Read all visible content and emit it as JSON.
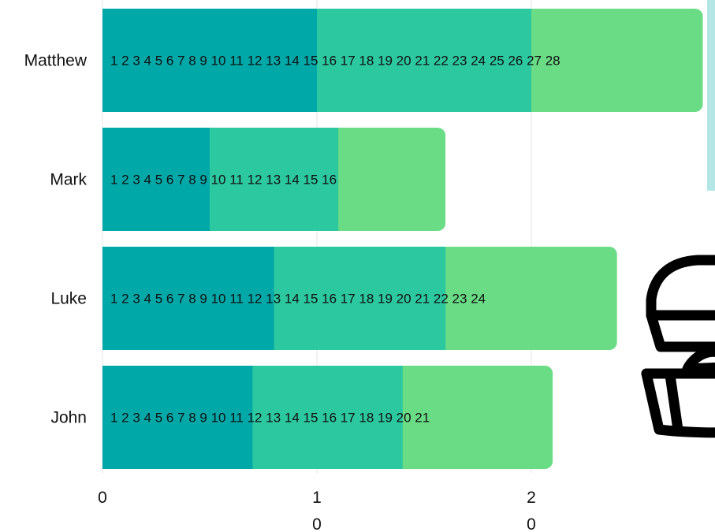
{
  "chart_data": {
    "type": "bar",
    "orientation": "horizontal",
    "stacked": true,
    "categories": [
      "Matthew",
      "Mark",
      "Luke",
      "John"
    ],
    "series": [
      {
        "color": "#00a8a8",
        "values": [
          10,
          5,
          8,
          7
        ]
      },
      {
        "color": "#2cc8a0",
        "values": [
          10,
          6,
          8,
          7
        ]
      },
      {
        "color": "#6adc86",
        "values": [
          8,
          5,
          8,
          7
        ]
      }
    ],
    "chapter_labels": [
      "1 2 3 4 5 6 7 8 9 10 11  12 13 14 15 16 17 18 19 20 21 22 23 24 25 26 27 28",
      "1 2 3 4 5 6 7 8 9 10 11  12 13 14 15 16",
      "1 2 3 4 5 6 7 8 9 10 11  12 13 14 15 16 17 18 19 20 21 22 23 24",
      "1 2 3 4 5 6 7 8 9 10 11  12 13 14 15 16 17 18 19 20 21"
    ],
    "x_ticks": [
      {
        "value": 0,
        "line1": "0",
        "line2": ""
      },
      {
        "value": 10,
        "line1": "1",
        "line2": "0"
      },
      {
        "value": 20,
        "line1": "2",
        "line2": "0"
      }
    ],
    "xlim": [
      0,
      28
    ],
    "grid": true,
    "legend": "none"
  },
  "decor": {
    "chest_icon": "treasure-chest-icon",
    "side_panel_color": "#b4e6e6"
  }
}
